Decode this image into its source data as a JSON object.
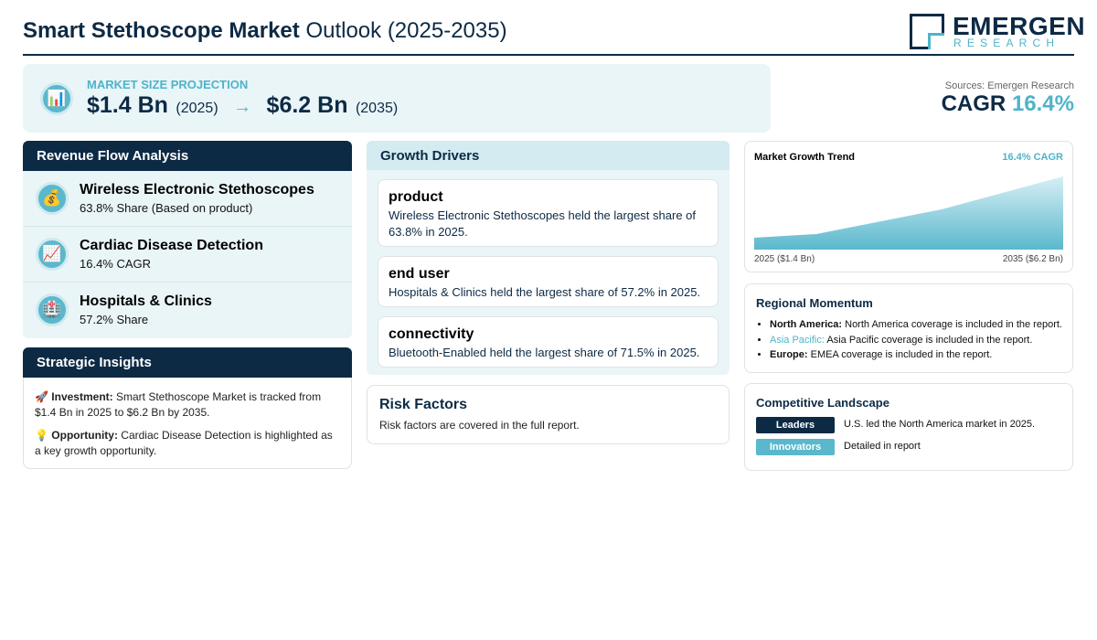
{
  "header": {
    "title_bold": "Smart Stethoscope Market",
    "title_rest": "Outlook (2025-2035)",
    "logo_main": "EMERGEN",
    "logo_sub": "RESEARCH"
  },
  "projection": {
    "label": "MARKET SIZE PROJECTION",
    "start_value": "$1.4 Bn",
    "start_year": "(2025)",
    "end_value": "$6.2 Bn",
    "end_year": "(2035)"
  },
  "sources": "Sources: Emergen Research",
  "cagr": {
    "label": "CAGR",
    "value": "16.4%"
  },
  "revenue_flow": {
    "title": "Revenue Flow Analysis",
    "items": [
      {
        "name": "Wireless Electronic Stethoscopes",
        "detail": "63.8% Share (Based on product)"
      },
      {
        "name": "Cardiac Disease Detection",
        "detail": "16.4% CAGR"
      },
      {
        "name": "Hospitals & Clinics",
        "detail": "57.2% Share"
      }
    ]
  },
  "strategic_insights": {
    "title": "Strategic Insights",
    "items": [
      {
        "label": "Investment:",
        "text": "Smart Stethoscope Market is tracked from $1.4 Bn in 2025 to $6.2 Bn by 2035."
      },
      {
        "label": "Opportunity:",
        "text": "Cardiac Disease Detection is highlighted as a key growth opportunity."
      }
    ]
  },
  "growth_drivers": {
    "title": "Growth Drivers",
    "items": [
      {
        "heading": "product",
        "text": "Wireless Electronic Stethoscopes held the largest share of 63.8% in 2025."
      },
      {
        "heading": "end user",
        "text": "Hospitals & Clinics held the largest share of 57.2% in 2025."
      },
      {
        "heading": "connectivity",
        "text": "Bluetooth-Enabled held the largest share of 71.5% in 2025."
      }
    ]
  },
  "risk_factors": {
    "title": "Risk Factors",
    "text": "Risk factors are covered in the full report."
  },
  "trend": {
    "title": "Market Growth Trend",
    "badge": "16.4% CAGR",
    "start_label": "2025 ($1.4 Bn)",
    "end_label": "2035 ($6.2 Bn)"
  },
  "regional": {
    "title": "Regional Momentum",
    "items": [
      {
        "region": "North America:",
        "text": "North America coverage is included in the report."
      },
      {
        "region": "Asia Pacific:",
        "text": "Asia Pacific coverage is included in the report."
      },
      {
        "region": "Europe:",
        "text": "EMEA coverage is included in the report."
      }
    ]
  },
  "competitive": {
    "title": "Competitive Landscape",
    "items": [
      {
        "tag": "Leaders",
        "text": "U.S. led the North America market in 2025."
      },
      {
        "tag": "Innovators",
        "text": "Detailed in report"
      }
    ]
  }
}
